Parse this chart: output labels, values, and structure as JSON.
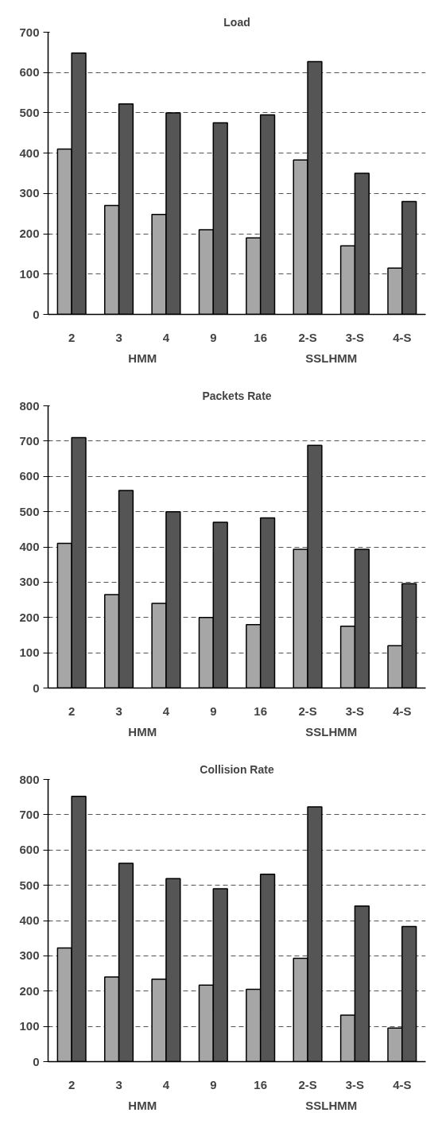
{
  "chart_data": [
    {
      "type": "bar",
      "title": "Load",
      "categories": [
        "2",
        "3",
        "4",
        "9",
        "16",
        "2-S",
        "3-S",
        "4-S"
      ],
      "series": [
        {
          "color": "#a6a6a6",
          "values": [
            410,
            270,
            248,
            210,
            190,
            383,
            170,
            115
          ]
        },
        {
          "color": "#555555",
          "values": [
            648,
            522,
            500,
            475,
            495,
            627,
            350,
            280
          ]
        }
      ],
      "ylim": [
        0,
        700
      ],
      "yticks": [
        0,
        100,
        200,
        300,
        400,
        500,
        600,
        700
      ],
      "grid": "y",
      "legend": false,
      "annotations": [
        "HMM",
        "SSLHMM"
      ]
    },
    {
      "type": "bar",
      "title": "Packets Rate",
      "categories": [
        "2",
        "3",
        "4",
        "9",
        "16",
        "2-S",
        "3-S",
        "4-S"
      ],
      "series": [
        {
          "color": "#a6a6a6",
          "values": [
            410,
            265,
            240,
            200,
            180,
            393,
            175,
            120
          ]
        },
        {
          "color": "#555555",
          "values": [
            710,
            560,
            500,
            470,
            482,
            688,
            393,
            296
          ]
        }
      ],
      "ylim": [
        0,
        800
      ],
      "yticks": [
        0,
        100,
        200,
        300,
        400,
        500,
        600,
        700,
        800
      ],
      "grid": "y",
      "legend": false,
      "annotations": [
        "HMM",
        "SSLHMM"
      ]
    },
    {
      "type": "bar",
      "title": "Collision Rate",
      "categories": [
        "2",
        "3",
        "4",
        "9",
        "16",
        "2-S",
        "3-S",
        "4-S"
      ],
      "series": [
        {
          "color": "#a6a6a6",
          "values": [
            322,
            240,
            234,
            217,
            205,
            293,
            132,
            95
          ]
        },
        {
          "color": "#555555",
          "values": [
            752,
            562,
            519,
            490,
            531,
            722,
            441,
            383
          ]
        }
      ],
      "ylim": [
        0,
        800
      ],
      "yticks": [
        0,
        100,
        200,
        300,
        400,
        500,
        600,
        700,
        800
      ],
      "grid": "y",
      "legend": false,
      "annotations": [
        "HMM",
        "SSLHMM"
      ]
    }
  ]
}
